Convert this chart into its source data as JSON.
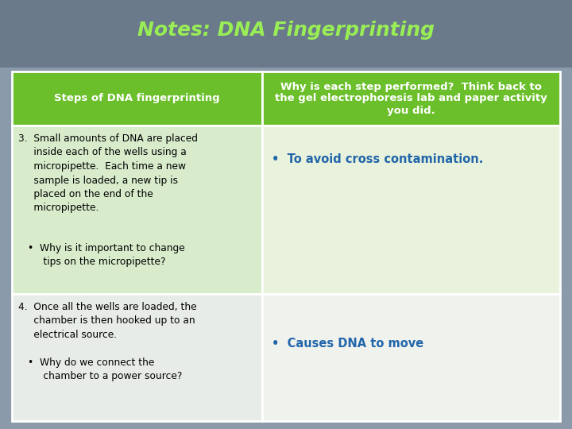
{
  "title": "Notes: DNA Fingerprinting",
  "title_color": "#99ee55",
  "title_fontsize": 18,
  "header_bg": "#6bbf2a",
  "header_text_color": "#ffffff",
  "col1_header": "Steps of DNA fingerprinting",
  "col2_header": "Why is each step performed?  Think back to\nthe gel electrophoresis lab and paper activity\nyou did.",
  "row1_bg_left": "#d8eccc",
  "row1_bg_right": "#e8f2dc",
  "row2_bg_left": "#e8ece8",
  "row2_bg_right": "#f0f2ee",
  "slide_bg_top": "#6a7a8a",
  "slide_bg_bottom": "#8a9aaa",
  "row1_left_main": "3.  Small amounts of DNA are placed\n     inside each of the wells using a\n     micropipette.  Each time a new\n     sample is loaded, a new tip is\n     placed on the end of the\n     micropipette.",
  "row1_left_bullet": "•  Why is it important to change\n     tips on the micropipette?",
  "row1_right_bullet": "•  To avoid cross contamination.",
  "row1_right_color": "#2266aa",
  "row2_left_main": "4.  Once all the wells are loaded, the\n     chamber is then hooked up to an\n     electrical source.",
  "row2_left_bullet": "•  Why do we connect the\n     chamber to a power source?",
  "row2_right_bullet": "•  Causes DNA to move",
  "row2_right_color": "#2266aa",
  "fig_width": 7.2,
  "fig_height": 5.4,
  "dpi": 100
}
